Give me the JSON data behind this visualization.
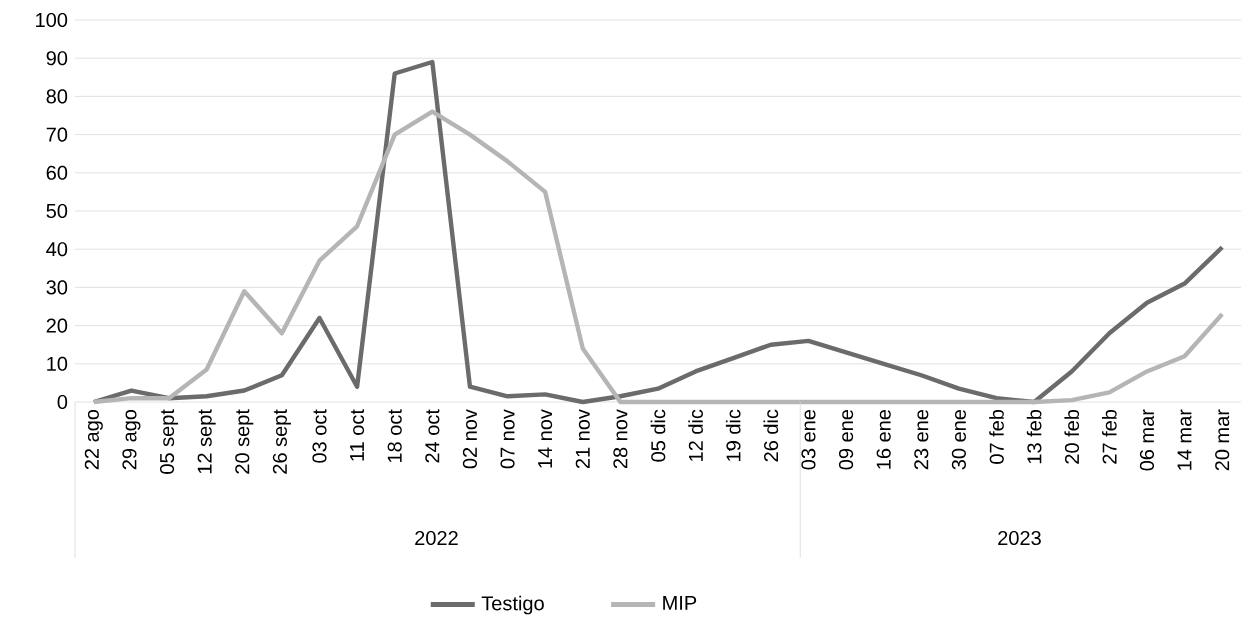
{
  "chart_data": {
    "type": "line",
    "categories": [
      "22 ago",
      "29 ago",
      "05 sept",
      "12 sept",
      "20 sept",
      "26 sept",
      "03 oct",
      "11 oct",
      "18 oct",
      "24 oct",
      "02 nov",
      "07 nov",
      "14 nov",
      "21 nov",
      "28 nov",
      "05 dic",
      "12 dic",
      "19 dic",
      "26 dic",
      "03 ene",
      "09 ene",
      "16 ene",
      "23 ene",
      "30 ene",
      "07 feb",
      "13 feb",
      "20 feb",
      "27 feb",
      "06 mar",
      "14 mar",
      "20 mar"
    ],
    "series": [
      {
        "name": "Testigo",
        "color": "#6b6b6b",
        "values": [
          0,
          3,
          1,
          1.5,
          3,
          7,
          22,
          4,
          86,
          89,
          4,
          1.5,
          2,
          0,
          1.5,
          3.5,
          8,
          11.5,
          15,
          16,
          13,
          10,
          7,
          3.5,
          1,
          0,
          8,
          18,
          26,
          31,
          40.5
        ]
      },
      {
        "name": "MIP",
        "color": "#b5b5b5",
        "values": [
          0,
          1,
          1,
          8.5,
          29,
          18,
          37,
          46,
          70,
          76,
          70,
          63,
          55,
          14,
          0,
          0,
          0,
          0,
          0,
          0,
          0,
          0,
          0,
          0,
          0,
          0,
          0.5,
          2.5,
          8,
          12,
          23
        ]
      }
    ],
    "annotations": [
      "2022",
      "2023"
    ],
    "ylim": [
      0,
      100
    ],
    "yticks": [
      0,
      10,
      20,
      30,
      40,
      50,
      60,
      70,
      80,
      90,
      100
    ],
    "grid": "y",
    "legend": "bottom",
    "marker": "none",
    "line_style": "solid"
  }
}
